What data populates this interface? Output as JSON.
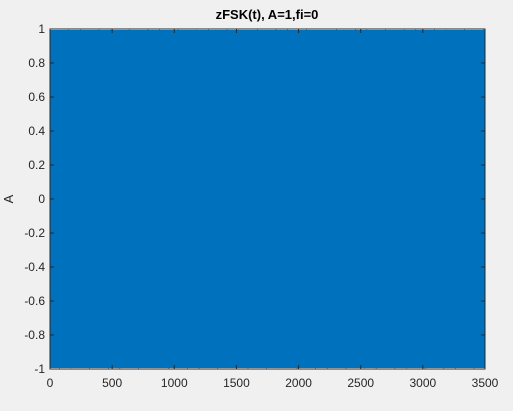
{
  "chart_data": {
    "type": "line",
    "title": "zFSK(t), A=1,fi=0",
    "xlabel": "",
    "ylabel": "A",
    "xlim": [
      0,
      3500
    ],
    "ylim": [
      -1,
      1
    ],
    "xticks": [
      0,
      500,
      1000,
      1500,
      2000,
      2500,
      3000,
      3500
    ],
    "xtick_labels": [
      "0",
      "500",
      "1000",
      "1500",
      "2000",
      "2500",
      "3000",
      "3500"
    ],
    "yticks": [
      -1,
      -0.8,
      -0.6,
      -0.4,
      -0.2,
      0,
      0.2,
      0.4,
      0.6,
      0.8,
      1
    ],
    "ytick_labels": [
      "-1",
      "-0.8",
      "-0.6",
      "-0.4",
      "-0.2",
      "0",
      "0.2",
      "0.4",
      "0.6",
      "0.8",
      "1"
    ],
    "grid": false,
    "series": [
      {
        "name": "",
        "color": "#0072BD",
        "description": "dense oscillating FSK signal filling full amplitude range",
        "x_start": 0,
        "x_end": 3500,
        "amplitude": 1
      }
    ],
    "colors": {
      "background": "#f0f0f0",
      "axes_background": "#ffffff",
      "line": "#0072BD",
      "axis": "#262626"
    }
  }
}
